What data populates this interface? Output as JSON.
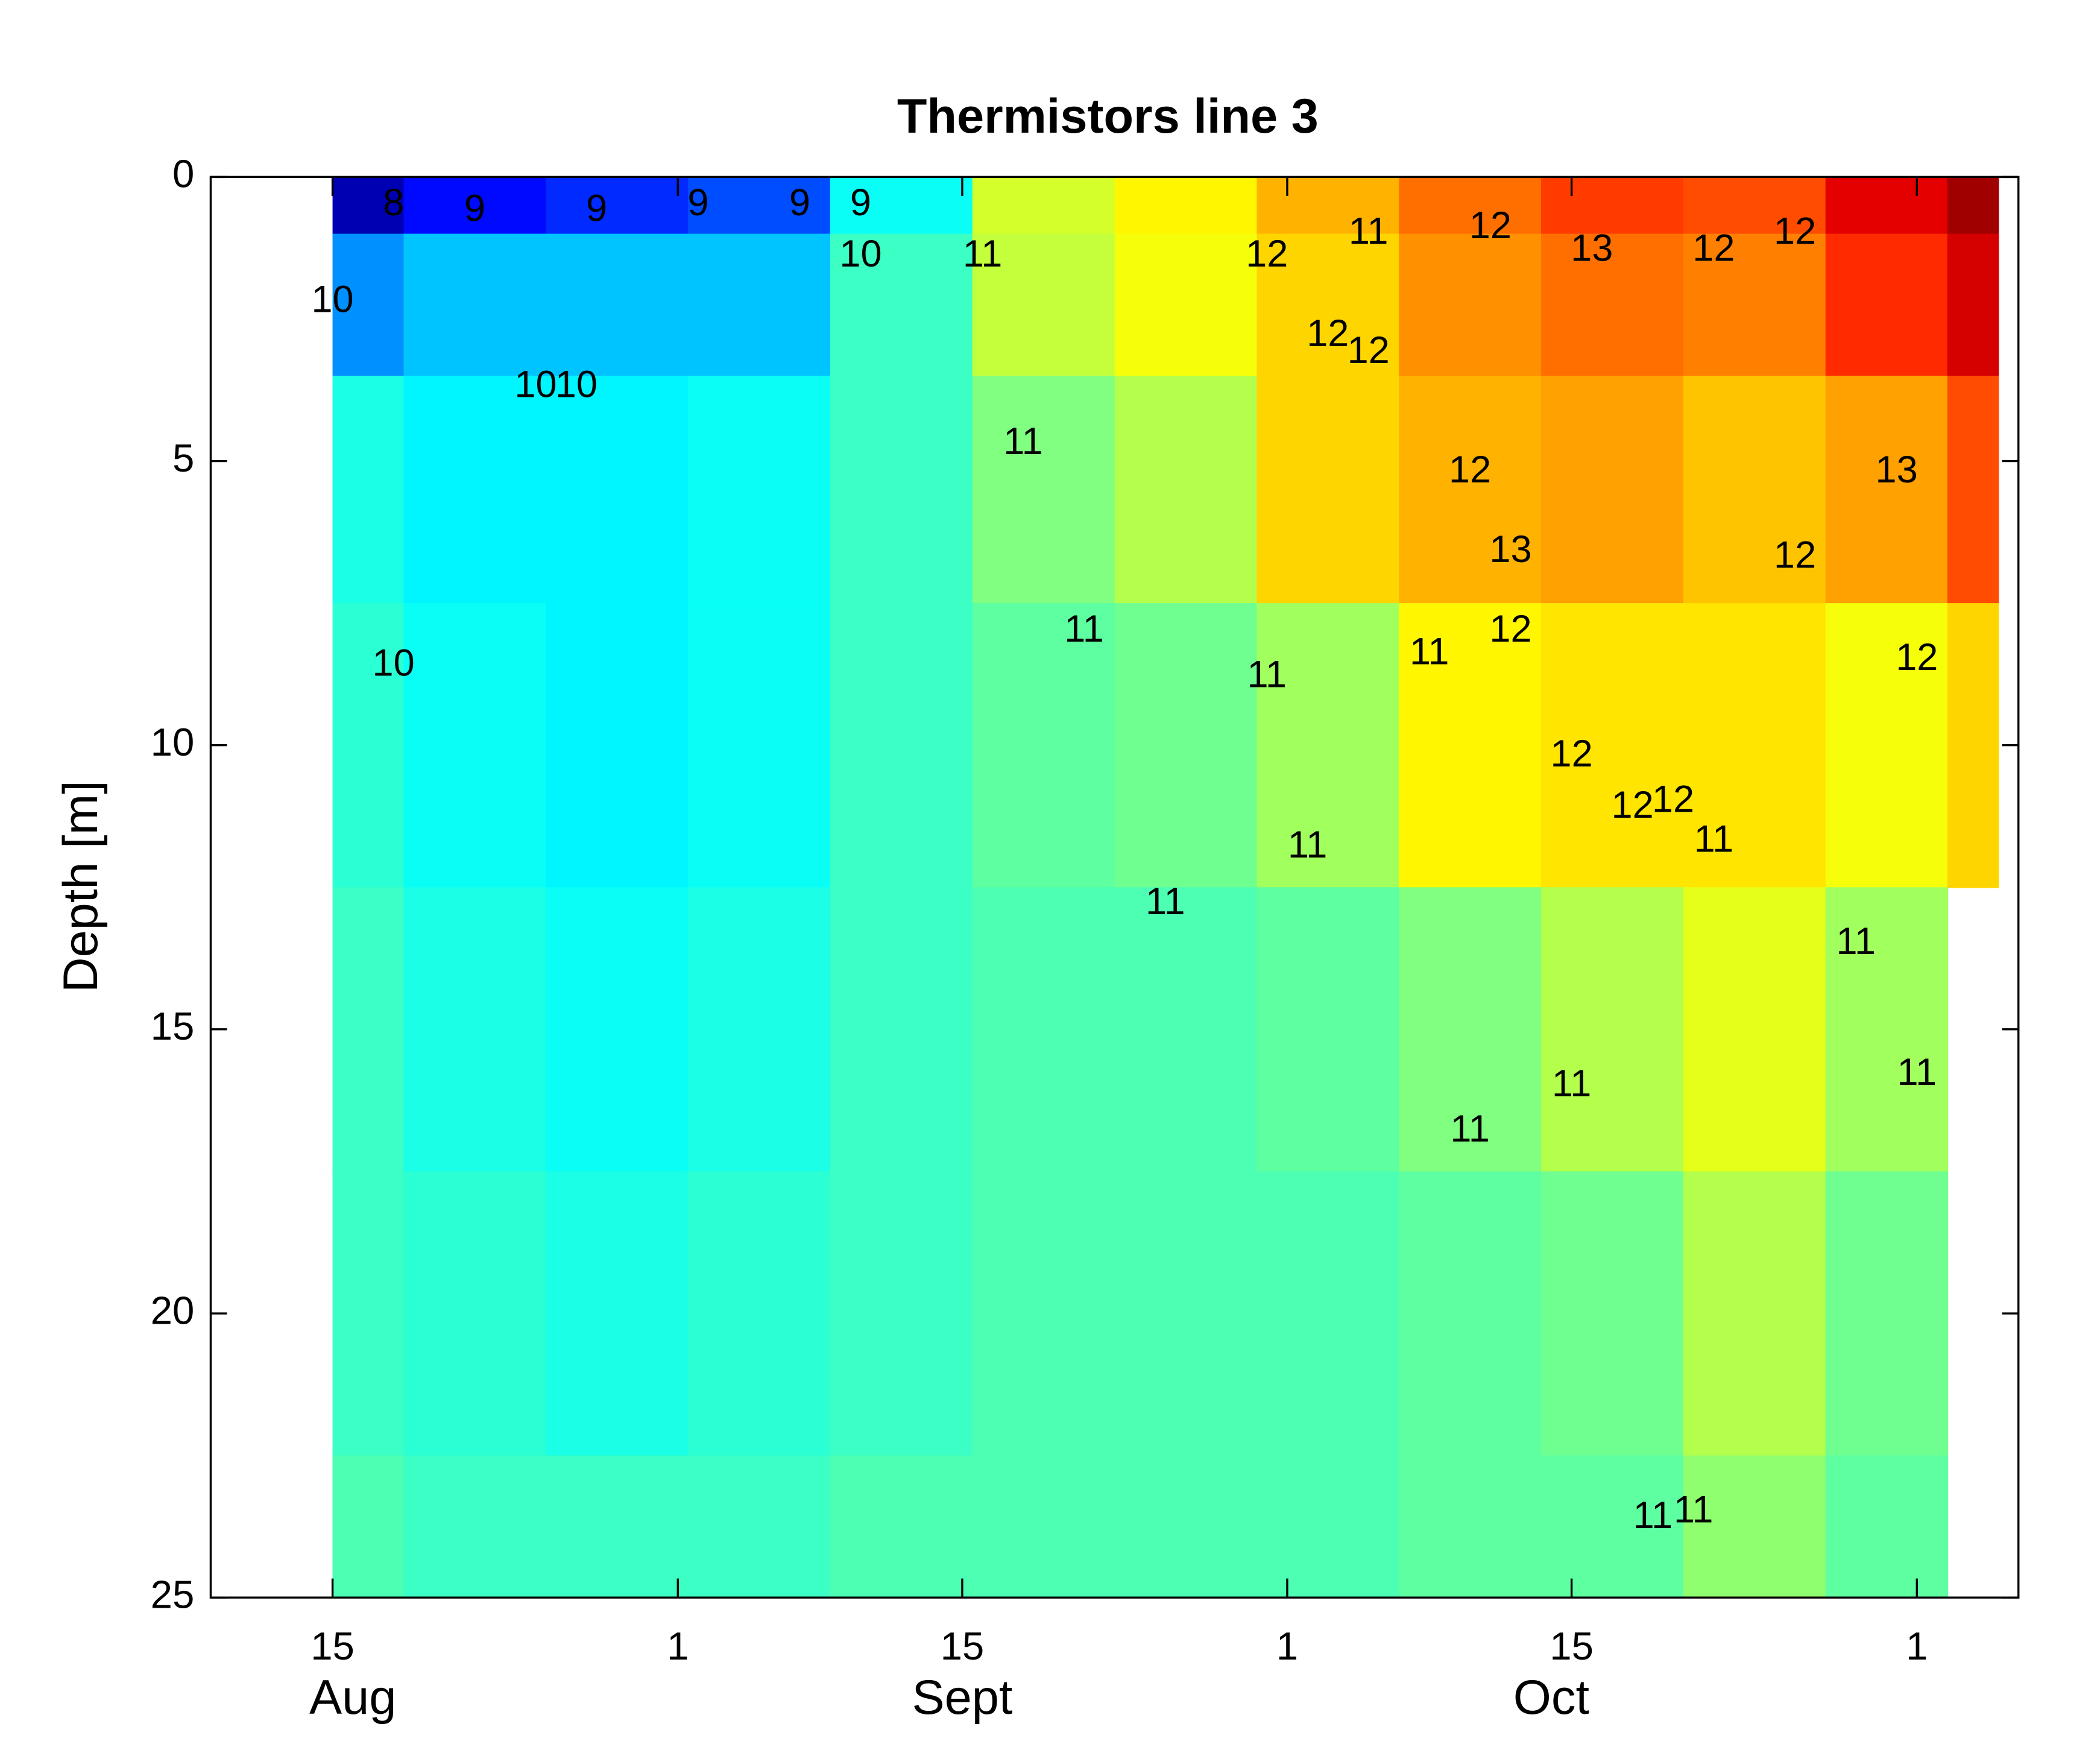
{
  "chart_data": {
    "type": "contour",
    "title": "Thermistors line 3",
    "y_label": "Depth [m]",
    "xlim": [
      "Aug 9",
      "Nov 6"
    ],
    "xticks": [
      {
        "value": "Aug 15",
        "label": "15"
      },
      {
        "value": "Sep 1",
        "label": "1"
      },
      {
        "value": "Sep 15",
        "label": "15"
      },
      {
        "value": "Oct 1",
        "label": "1"
      },
      {
        "value": "Oct 15",
        "label": "15"
      },
      {
        "value": "Nov 1",
        "label": "1"
      }
    ],
    "month_labels": [
      {
        "value": "Aug 16",
        "label": "Aug"
      },
      {
        "value": "Sep 15",
        "label": "Sept"
      },
      {
        "value": "Oct 14",
        "label": "Oct"
      }
    ],
    "ylim": [
      0,
      25
    ],
    "y_inverted": true,
    "yticks": [
      0,
      5,
      10,
      15,
      20,
      25
    ],
    "colormap": "jet",
    "clim": [
      8,
      14
    ],
    "x": [
      "Aug 15",
      "Aug 22",
      "Aug 29",
      "Sep 5",
      "Sep 12",
      "Sep 19",
      "Sep 26",
      "Oct 3",
      "Oct 10",
      "Oct 17",
      "Oct 24",
      "Oct 31",
      "Nov 5"
    ],
    "depths": [
      0,
      2,
      5,
      10,
      15,
      20,
      25
    ],
    "z": [
      [
        8.3,
        9.6,
        10.4,
        10.5,
        10.6,
        10.6,
        10.7
      ],
      [
        8.8,
        9.9,
        10.2,
        10.3,
        10.4,
        10.5,
        10.6
      ],
      [
        9.0,
        9.9,
        10.2,
        10.2,
        10.3,
        10.4,
        10.6
      ],
      [
        9.2,
        9.9,
        10.3,
        10.3,
        10.4,
        10.5,
        10.6
      ],
      [
        10.3,
        10.6,
        10.6,
        10.6,
        10.6,
        10.6,
        10.7
      ],
      [
        11.5,
        11.4,
        11.0,
        10.8,
        10.7,
        10.7,
        10.7
      ],
      [
        11.8,
        11.7,
        11.3,
        10.9,
        10.7,
        10.7,
        10.7
      ],
      [
        12.2,
        12.0,
        12.0,
        11.2,
        10.8,
        10.7,
        10.7
      ],
      [
        12.6,
        12.4,
        12.2,
        11.8,
        11.0,
        10.8,
        10.8
      ],
      [
        12.9,
        12.6,
        12.3,
        11.9,
        11.3,
        10.9,
        10.8
      ],
      [
        12.8,
        12.5,
        12.1,
        11.9,
        11.6,
        11.3,
        11.1
      ],
      [
        13.4,
        13.0,
        12.3,
        11.7,
        11.2,
        10.9,
        10.8
      ],
      [
        13.8,
        13.5,
        12.8,
        12.0,
        null,
        null,
        null
      ]
    ],
    "contour_labels": [
      {
        "text": "8",
        "x": "Aug 18",
        "y": 0.5
      },
      {
        "text": "9",
        "x": "Aug 22",
        "y": 0.6
      },
      {
        "text": "9",
        "x": "Aug 28",
        "y": 0.6
      },
      {
        "text": "9",
        "x": "Sep 2",
        "y": 0.5
      },
      {
        "text": "9",
        "x": "Sep 7",
        "y": 0.5
      },
      {
        "text": "9",
        "x": "Sep 10",
        "y": 0.5
      },
      {
        "text": "10",
        "x": "Aug 15",
        "y": 2.2
      },
      {
        "text": "10",
        "x": "Aug 18",
        "y": 8.6
      },
      {
        "text": "10",
        "x": "Aug 25",
        "y": 3.7
      },
      {
        "text": "10",
        "x": "Aug 27",
        "y": 3.7
      },
      {
        "text": "10",
        "x": "Sep 10",
        "y": 1.4
      },
      {
        "text": "11",
        "x": "Sep 16",
        "y": 1.4
      },
      {
        "text": "11",
        "x": "Sep 18",
        "y": 4.7
      },
      {
        "text": "11",
        "x": "Sep 21",
        "y": 8
      },
      {
        "text": "11",
        "x": "Sep 25",
        "y": 12.8
      },
      {
        "text": "11",
        "x": "Sep 30",
        "y": 8.8
      },
      {
        "text": "12",
        "x": "Sep 30",
        "y": 1.4
      },
      {
        "text": "11",
        "x": "Oct 5",
        "y": 1
      },
      {
        "text": "11",
        "x": "Oct 2",
        "y": 11.8
      },
      {
        "text": "12",
        "x": "Oct 3",
        "y": 2.8
      },
      {
        "text": "12",
        "x": "Oct 5",
        "y": 3.1
      },
      {
        "text": "11",
        "x": "Oct 8",
        "y": 8.4
      },
      {
        "text": "12",
        "x": "Oct 11",
        "y": 0.9
      },
      {
        "text": "12",
        "x": "Oct 10",
        "y": 5.2
      },
      {
        "text": "13",
        "x": "Oct 12",
        "y": 6.6
      },
      {
        "text": "12",
        "x": "Oct 12",
        "y": 8
      },
      {
        "text": "11",
        "x": "Oct 10",
        "y": 16.8
      },
      {
        "text": "13",
        "x": "Oct 16",
        "y": 1.3
      },
      {
        "text": "12",
        "x": "Oct 15",
        "y": 10.2
      },
      {
        "text": "11",
        "x": "Oct 15",
        "y": 16
      },
      {
        "text": "12",
        "x": "Oct 18",
        "y": 11.1
      },
      {
        "text": "12",
        "x": "Oct 20",
        "y": 11
      },
      {
        "text": "11",
        "x": "Oct 19",
        "y": 23.6
      },
      {
        "text": "11",
        "x": "Oct 21",
        "y": 23.5
      },
      {
        "text": "11",
        "x": "Oct 22",
        "y": 11.7
      },
      {
        "text": "12",
        "x": "Oct 22",
        "y": 1.3
      },
      {
        "text": "12",
        "x": "Oct 26",
        "y": 1
      },
      {
        "text": "12",
        "x": "Oct 26",
        "y": 6.7
      },
      {
        "text": "11",
        "x": "Oct 29",
        "y": 13.5
      },
      {
        "text": "13",
        "x": "Oct 31",
        "y": 5.2
      },
      {
        "text": "12",
        "x": "Nov 1",
        "y": 8.5
      },
      {
        "text": "11",
        "x": "Nov 1",
        "y": 15.8
      }
    ]
  }
}
